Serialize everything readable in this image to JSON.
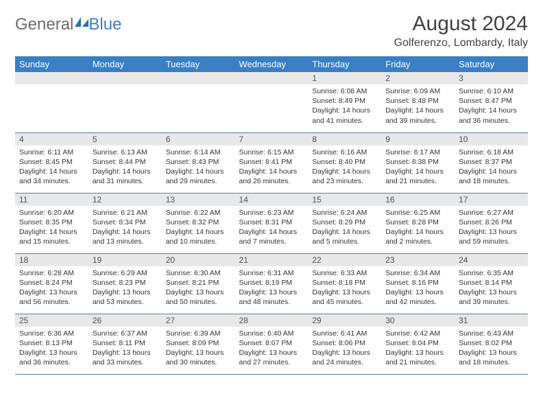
{
  "logo": {
    "part1": "General",
    "part2": "Blue"
  },
  "header": {
    "month_title": "August 2024",
    "location": "Golferenzo, Lombardy, Italy"
  },
  "colors": {
    "header_bg": "#3a7fc4",
    "header_text": "#ffffff",
    "daynum_bg": "#e8e8e8",
    "border": "#5a7a9a",
    "body_text": "#333333"
  },
  "day_names": [
    "Sunday",
    "Monday",
    "Tuesday",
    "Wednesday",
    "Thursday",
    "Friday",
    "Saturday"
  ],
  "weeks": [
    [
      {
        "n": "",
        "sr": "",
        "ss": "",
        "dl": ""
      },
      {
        "n": "",
        "sr": "",
        "ss": "",
        "dl": ""
      },
      {
        "n": "",
        "sr": "",
        "ss": "",
        "dl": ""
      },
      {
        "n": "",
        "sr": "",
        "ss": "",
        "dl": ""
      },
      {
        "n": "1",
        "sr": "Sunrise: 6:08 AM",
        "ss": "Sunset: 8:49 PM",
        "dl": "Daylight: 14 hours and 41 minutes."
      },
      {
        "n": "2",
        "sr": "Sunrise: 6:09 AM",
        "ss": "Sunset: 8:48 PM",
        "dl": "Daylight: 14 hours and 39 minutes."
      },
      {
        "n": "3",
        "sr": "Sunrise: 6:10 AM",
        "ss": "Sunset: 8:47 PM",
        "dl": "Daylight: 14 hours and 36 minutes."
      }
    ],
    [
      {
        "n": "4",
        "sr": "Sunrise: 6:11 AM",
        "ss": "Sunset: 8:45 PM",
        "dl": "Daylight: 14 hours and 34 minutes."
      },
      {
        "n": "5",
        "sr": "Sunrise: 6:13 AM",
        "ss": "Sunset: 8:44 PM",
        "dl": "Daylight: 14 hours and 31 minutes."
      },
      {
        "n": "6",
        "sr": "Sunrise: 6:14 AM",
        "ss": "Sunset: 8:43 PM",
        "dl": "Daylight: 14 hours and 29 minutes."
      },
      {
        "n": "7",
        "sr": "Sunrise: 6:15 AM",
        "ss": "Sunset: 8:41 PM",
        "dl": "Daylight: 14 hours and 26 minutes."
      },
      {
        "n": "8",
        "sr": "Sunrise: 6:16 AM",
        "ss": "Sunset: 8:40 PM",
        "dl": "Daylight: 14 hours and 23 minutes."
      },
      {
        "n": "9",
        "sr": "Sunrise: 6:17 AM",
        "ss": "Sunset: 8:38 PM",
        "dl": "Daylight: 14 hours and 21 minutes."
      },
      {
        "n": "10",
        "sr": "Sunrise: 6:18 AM",
        "ss": "Sunset: 8:37 PM",
        "dl": "Daylight: 14 hours and 18 minutes."
      }
    ],
    [
      {
        "n": "11",
        "sr": "Sunrise: 6:20 AM",
        "ss": "Sunset: 8:35 PM",
        "dl": "Daylight: 14 hours and 15 minutes."
      },
      {
        "n": "12",
        "sr": "Sunrise: 6:21 AM",
        "ss": "Sunset: 8:34 PM",
        "dl": "Daylight: 14 hours and 13 minutes."
      },
      {
        "n": "13",
        "sr": "Sunrise: 6:22 AM",
        "ss": "Sunset: 8:32 PM",
        "dl": "Daylight: 14 hours and 10 minutes."
      },
      {
        "n": "14",
        "sr": "Sunrise: 6:23 AM",
        "ss": "Sunset: 8:31 PM",
        "dl": "Daylight: 14 hours and 7 minutes."
      },
      {
        "n": "15",
        "sr": "Sunrise: 6:24 AM",
        "ss": "Sunset: 8:29 PM",
        "dl": "Daylight: 14 hours and 5 minutes."
      },
      {
        "n": "16",
        "sr": "Sunrise: 6:25 AM",
        "ss": "Sunset: 8:28 PM",
        "dl": "Daylight: 14 hours and 2 minutes."
      },
      {
        "n": "17",
        "sr": "Sunrise: 6:27 AM",
        "ss": "Sunset: 8:26 PM",
        "dl": "Daylight: 13 hours and 59 minutes."
      }
    ],
    [
      {
        "n": "18",
        "sr": "Sunrise: 6:28 AM",
        "ss": "Sunset: 8:24 PM",
        "dl": "Daylight: 13 hours and 56 minutes."
      },
      {
        "n": "19",
        "sr": "Sunrise: 6:29 AM",
        "ss": "Sunset: 8:23 PM",
        "dl": "Daylight: 13 hours and 53 minutes."
      },
      {
        "n": "20",
        "sr": "Sunrise: 6:30 AM",
        "ss": "Sunset: 8:21 PM",
        "dl": "Daylight: 13 hours and 50 minutes."
      },
      {
        "n": "21",
        "sr": "Sunrise: 6:31 AM",
        "ss": "Sunset: 8:19 PM",
        "dl": "Daylight: 13 hours and 48 minutes."
      },
      {
        "n": "22",
        "sr": "Sunrise: 6:33 AM",
        "ss": "Sunset: 8:18 PM",
        "dl": "Daylight: 13 hours and 45 minutes."
      },
      {
        "n": "23",
        "sr": "Sunrise: 6:34 AM",
        "ss": "Sunset: 8:16 PM",
        "dl": "Daylight: 13 hours and 42 minutes."
      },
      {
        "n": "24",
        "sr": "Sunrise: 6:35 AM",
        "ss": "Sunset: 8:14 PM",
        "dl": "Daylight: 13 hours and 39 minutes."
      }
    ],
    [
      {
        "n": "25",
        "sr": "Sunrise: 6:36 AM",
        "ss": "Sunset: 8:13 PM",
        "dl": "Daylight: 13 hours and 36 minutes."
      },
      {
        "n": "26",
        "sr": "Sunrise: 6:37 AM",
        "ss": "Sunset: 8:11 PM",
        "dl": "Daylight: 13 hours and 33 minutes."
      },
      {
        "n": "27",
        "sr": "Sunrise: 6:39 AM",
        "ss": "Sunset: 8:09 PM",
        "dl": "Daylight: 13 hours and 30 minutes."
      },
      {
        "n": "28",
        "sr": "Sunrise: 6:40 AM",
        "ss": "Sunset: 8:07 PM",
        "dl": "Daylight: 13 hours and 27 minutes."
      },
      {
        "n": "29",
        "sr": "Sunrise: 6:41 AM",
        "ss": "Sunset: 8:06 PM",
        "dl": "Daylight: 13 hours and 24 minutes."
      },
      {
        "n": "30",
        "sr": "Sunrise: 6:42 AM",
        "ss": "Sunset: 8:04 PM",
        "dl": "Daylight: 13 hours and 21 minutes."
      },
      {
        "n": "31",
        "sr": "Sunrise: 6:43 AM",
        "ss": "Sunset: 8:02 PM",
        "dl": "Daylight: 13 hours and 18 minutes."
      }
    ]
  ]
}
